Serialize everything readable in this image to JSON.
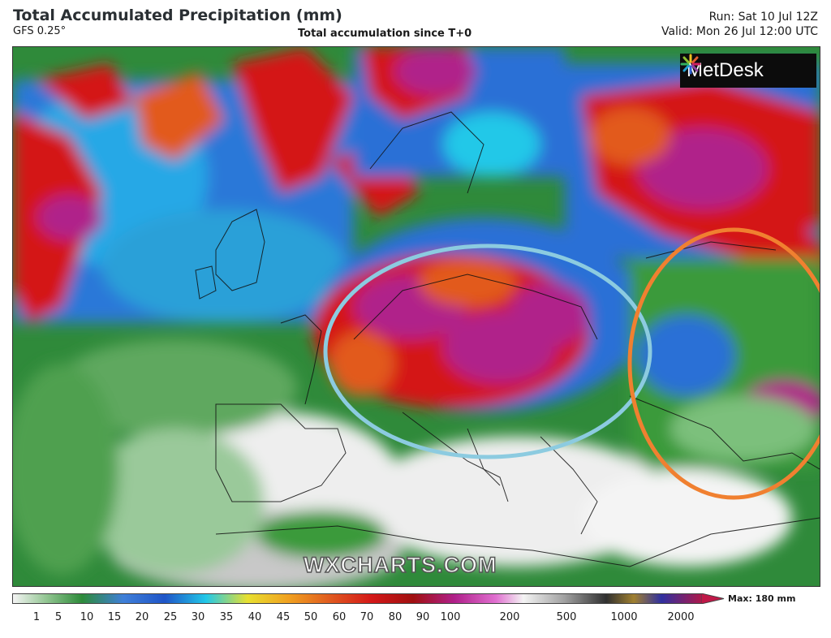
{
  "header": {
    "title": "Total Accumulated Precipitation (mm)",
    "model": "GFS 0.25°",
    "subtitle": "Total accumulation since T+0",
    "run": "Run: Sat 10 Jul 12Z",
    "valid": "Valid: Mon 26 Jul 12:00 UTC"
  },
  "map": {
    "logo": "MetDesk",
    "watermark": "WXCHARTS.COM",
    "highlight_colors": {
      "central_europe_ellipse": "#8ccbe0",
      "east_europe_ellipse": "#f08030"
    },
    "palette": {
      "dry_white": "#f2f2f2",
      "light_green": "#66aa66",
      "green": "#2e8b3a",
      "blue": "#2a6fd6",
      "cyan": "#22c8e8",
      "red": "#d41818",
      "magenta": "#b0208a"
    }
  },
  "legend": {
    "max_label": "Max: 180 mm",
    "ticks": [
      "1",
      "5",
      "10",
      "15",
      "20",
      "25",
      "30",
      "35",
      "40",
      "45",
      "50",
      "60",
      "70",
      "80",
      "90",
      "100",
      "200",
      "500",
      "1000",
      "2000"
    ]
  }
}
